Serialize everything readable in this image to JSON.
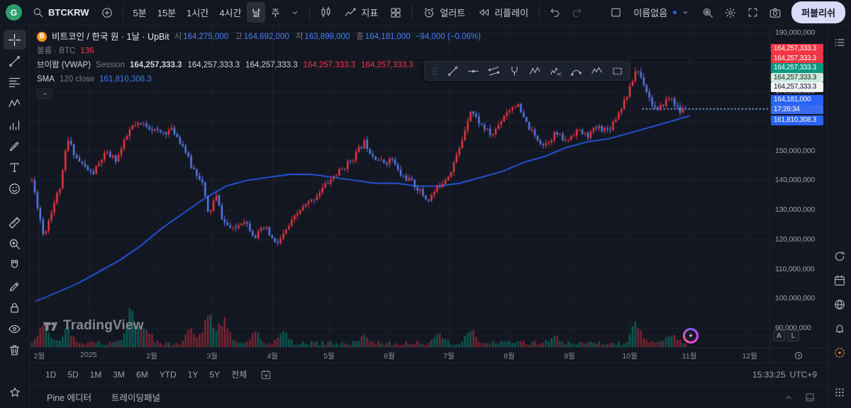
{
  "topbar": {
    "account_initial": "G",
    "account_color": "#2f9e6e",
    "symbol_search": "BTCKRW",
    "intervals": [
      "5분",
      "15분",
      "1시간",
      "4시간",
      "날",
      "주"
    ],
    "active_interval": "날",
    "indicators_label": "지표",
    "alerts_label": "얼러트",
    "replay_label": "리플레이",
    "layout_name": "이름없음",
    "publish_label": "퍼블리쉬"
  },
  "left_toolbar": {
    "tools": [
      "crosshair",
      "trend-line",
      "fib-retracement",
      "xabcd-pattern",
      "forecast",
      "brush",
      "text",
      "emoji",
      "ruler",
      "zoom-in",
      "magnet",
      "edit",
      "lock",
      "eye",
      "trash"
    ],
    "active_tool": "crosshair"
  },
  "floating_toolbar": {
    "tools": [
      "trend-line",
      "horizontal-line",
      "parallel-channel",
      "pitchfork",
      "xabcd-pattern",
      "elliott-wave",
      "curve",
      "polyline",
      "rectangle"
    ]
  },
  "right_toolbar": {
    "top_icons": [
      "watchlist"
    ],
    "middle_icons": [
      "refresh",
      "calendar",
      "web",
      "notifications",
      "community"
    ],
    "bottom_icon": "apps-grid"
  },
  "legend": {
    "title": "비트코인 / 한국 원 · 1날 · UpBit",
    "ohlc": [
      {
        "label": "시",
        "value": "164,275,000"
      },
      {
        "label": "고",
        "value": "164,692,000"
      },
      {
        "label": "저",
        "value": "163,899,000"
      },
      {
        "label": "종",
        "value": "164,181,000"
      }
    ],
    "change": "−94,000 (−0.06%)",
    "ohlc_color": "#4580f6",
    "volume": {
      "label": "볼륨 · BTC",
      "value": "136",
      "value_color": "#f23645"
    },
    "vwap": {
      "label": "브이왑 (VWAP)",
      "params": "Session",
      "values": [
        "164,257,333.3",
        "164,257,333.3",
        "164,257,333.3",
        "164,257,333.3",
        "164,257,333.3"
      ],
      "value_colors": [
        "#d1d4dc",
        "#d1d4dc",
        "#d1d4dc",
        "#f23645",
        "#f23645"
      ]
    },
    "sma": {
      "label": "SMA",
      "params": "120 close",
      "value": "161,810,308.3",
      "value_color": "#3e7bf2"
    }
  },
  "price_axis": {
    "ticks": [
      "190,000,000",
      "180,000,000",
      "170,000,000",
      "160,000,000",
      "150,000,000",
      "140,000,000",
      "130,000,000",
      "120,000,000",
      "110,000,000",
      "100,000,000",
      "90,000,000"
    ],
    "tags": [
      {
        "name": "vwap-band-tag",
        "text": "164,257,333.3",
        "bg": "#f23645",
        "fg": "#ffffff"
      },
      {
        "name": "vwap-band-tag",
        "text": "164,257,333.3",
        "bg": "#f23645",
        "fg": "#ffffff"
      },
      {
        "name": "vwap-band-tag",
        "text": "164,257,333.3",
        "bg": "#089981",
        "fg": "#ffffff"
      },
      {
        "name": "vwap-band-tag",
        "text": "164,257,333.3",
        "bg": "#cde9dc",
        "fg": "#10241a"
      },
      {
        "name": "vwap-value-tag",
        "text": "164,257,333.3",
        "bg": "#f2f4f9",
        "fg": "#131722"
      },
      {
        "name": "last-price-tag",
        "text": "164,181,000",
        "bg": "#2962ff",
        "fg": "#ffffff"
      },
      {
        "name": "candle-countdown-tag",
        "text": "17:26:34",
        "bg": "#3a6af0",
        "fg": "#ffffff"
      },
      {
        "name": "sma-value-tag",
        "text": "161,810,308.3",
        "bg": "#2962ff",
        "fg": "#ffffff"
      }
    ],
    "scale_buttons": [
      "A",
      "L"
    ]
  },
  "range_bar": {
    "ranges": [
      "1D",
      "5D",
      "1M",
      "3M",
      "6M",
      "YTD",
      "1Y",
      "5Y",
      "전체"
    ],
    "time": "15:33:25",
    "timezone": "UTC+9"
  },
  "bottom_bar": {
    "tabs": [
      "Pine 에디터",
      "트레이딩패널"
    ]
  },
  "watermark": "TradingView",
  "chart_data": {
    "type": "candlestick",
    "symbol": "BTCKRW",
    "exchange": "UpBit",
    "interval": "1날",
    "title": "비트코인 / 한국 원 · 1날 · UpBit",
    "unit": "KRW, values below in millions",
    "ohlc_current": {
      "open": 164275000,
      "high": 164692000,
      "low": 163899000,
      "close": 164181000,
      "change": "−94,000 (−0.06%)"
    },
    "y_axis": {
      "min_m": 83.5,
      "max_m": 192.4,
      "ticks_m": [
        190,
        180,
        170,
        160,
        150,
        140,
        130,
        120,
        110,
        100,
        90
      ]
    },
    "x_axis": {
      "labels": [
        "2월",
        "2025",
        "2월",
        "3월",
        "4월",
        "5월",
        "6월",
        "7월",
        "8월",
        "9월",
        "10월",
        "11월",
        "12월"
      ],
      "positions": [
        0.01,
        0.077,
        0.163,
        0.245,
        0.327,
        0.404,
        0.486,
        0.567,
        0.649,
        0.731,
        0.813,
        0.894,
        0.976
      ]
    },
    "candles_count": 235,
    "last_close_m": 164.181,
    "close_anchors_m": [
      [
        0.0,
        140
      ],
      [
        0.008,
        131
      ],
      [
        0.016,
        121
      ],
      [
        0.028,
        131
      ],
      [
        0.04,
        139
      ],
      [
        0.048,
        154
      ],
      [
        0.062,
        147
      ],
      [
        0.082,
        142
      ],
      [
        0.1,
        149
      ],
      [
        0.115,
        147
      ],
      [
        0.135,
        158
      ],
      [
        0.154,
        159
      ],
      [
        0.173,
        156
      ],
      [
        0.192,
        157
      ],
      [
        0.207,
        151
      ],
      [
        0.216,
        145
      ],
      [
        0.231,
        140
      ],
      [
        0.24,
        128
      ],
      [
        0.25,
        135
      ],
      [
        0.26,
        126
      ],
      [
        0.274,
        123
      ],
      [
        0.288,
        127
      ],
      [
        0.303,
        121
      ],
      [
        0.317,
        124
      ],
      [
        0.332,
        118
      ],
      [
        0.341,
        121
      ],
      [
        0.351,
        125
      ],
      [
        0.365,
        130
      ],
      [
        0.38,
        133
      ],
      [
        0.394,
        137
      ],
      [
        0.409,
        141
      ],
      [
        0.423,
        144
      ],
      [
        0.438,
        148
      ],
      [
        0.452,
        153
      ],
      [
        0.462,
        149
      ],
      [
        0.476,
        146
      ],
      [
        0.49,
        147
      ],
      [
        0.5,
        142
      ],
      [
        0.514,
        140
      ],
      [
        0.529,
        136
      ],
      [
        0.538,
        133
      ],
      [
        0.553,
        138
      ],
      [
        0.567,
        142
      ],
      [
        0.582,
        151
      ],
      [
        0.596,
        164
      ],
      [
        0.61,
        159
      ],
      [
        0.625,
        155
      ],
      [
        0.635,
        159
      ],
      [
        0.644,
        163
      ],
      [
        0.659,
        166
      ],
      [
        0.668,
        161
      ],
      [
        0.683,
        155
      ],
      [
        0.697,
        152
      ],
      [
        0.712,
        156
      ],
      [
        0.726,
        153
      ],
      [
        0.74,
        157
      ],
      [
        0.755,
        155
      ],
      [
        0.769,
        158
      ],
      [
        0.784,
        157
      ],
      [
        0.798,
        163
      ],
      [
        0.813,
        171
      ],
      [
        0.822,
        178
      ],
      [
        0.832,
        173
      ],
      [
        0.841,
        167
      ],
      [
        0.851,
        163
      ],
      [
        0.861,
        167
      ],
      [
        0.87,
        168
      ],
      [
        0.88,
        163
      ],
      [
        0.889,
        164.18
      ]
    ],
    "sma": {
      "label": "SMA 120 close",
      "value_m": 161.81,
      "points_m": [
        [
          0.005,
          99
        ],
        [
          0.034,
          102
        ],
        [
          0.062,
          105
        ],
        [
          0.091,
          109
        ],
        [
          0.12,
          113
        ],
        [
          0.149,
          118
        ],
        [
          0.178,
          124
        ],
        [
          0.207,
          129
        ],
        [
          0.236,
          134
        ],
        [
          0.264,
          138
        ],
        [
          0.293,
          140
        ],
        [
          0.322,
          141
        ],
        [
          0.351,
          142
        ],
        [
          0.38,
          142
        ],
        [
          0.409,
          141
        ],
        [
          0.438,
          140
        ],
        [
          0.466,
          139
        ],
        [
          0.495,
          139
        ],
        [
          0.524,
          138
        ],
        [
          0.553,
          138
        ],
        [
          0.582,
          139
        ],
        [
          0.611,
          141
        ],
        [
          0.64,
          143
        ],
        [
          0.668,
          146
        ],
        [
          0.697,
          148
        ],
        [
          0.726,
          151
        ],
        [
          0.755,
          153
        ],
        [
          0.784,
          154
        ],
        [
          0.813,
          156
        ],
        [
          0.841,
          158
        ],
        [
          0.87,
          160
        ],
        [
          0.894,
          161.8
        ]
      ]
    },
    "vwap": {
      "label": "브이왑 (VWAP) Session",
      "value_m": 164.257
    },
    "volume": {
      "label": "볼륨 · BTC",
      "last_value": "136",
      "spikes": [
        [
          0.016,
          30
        ],
        [
          0.048,
          22
        ],
        [
          0.135,
          55
        ],
        [
          0.154,
          30
        ],
        [
          0.216,
          25
        ],
        [
          0.24,
          48
        ],
        [
          0.26,
          42
        ],
        [
          0.303,
          20
        ],
        [
          0.341,
          22
        ],
        [
          0.452,
          16
        ],
        [
          0.553,
          14
        ],
        [
          0.596,
          22
        ],
        [
          0.712,
          14
        ],
        [
          0.822,
          36
        ],
        [
          0.87,
          16
        ]
      ]
    },
    "price_lines": [
      {
        "price_m": 164.257,
        "color": "#d1d4dc",
        "from": 0.83
      },
      {
        "price_m": 164.181,
        "color": "#4a7df0",
        "from": 0.83
      }
    ],
    "colors": {
      "up": "#f23645",
      "down": "#5b7cf0",
      "vol_up": "rgba(8,153,129,0.55)",
      "vol_down": "rgba(242,54,69,0.5)",
      "sma_line": "#2962ff",
      "grid": "rgba(170,180,200,0.07)",
      "accent": "#2962ff"
    }
  }
}
